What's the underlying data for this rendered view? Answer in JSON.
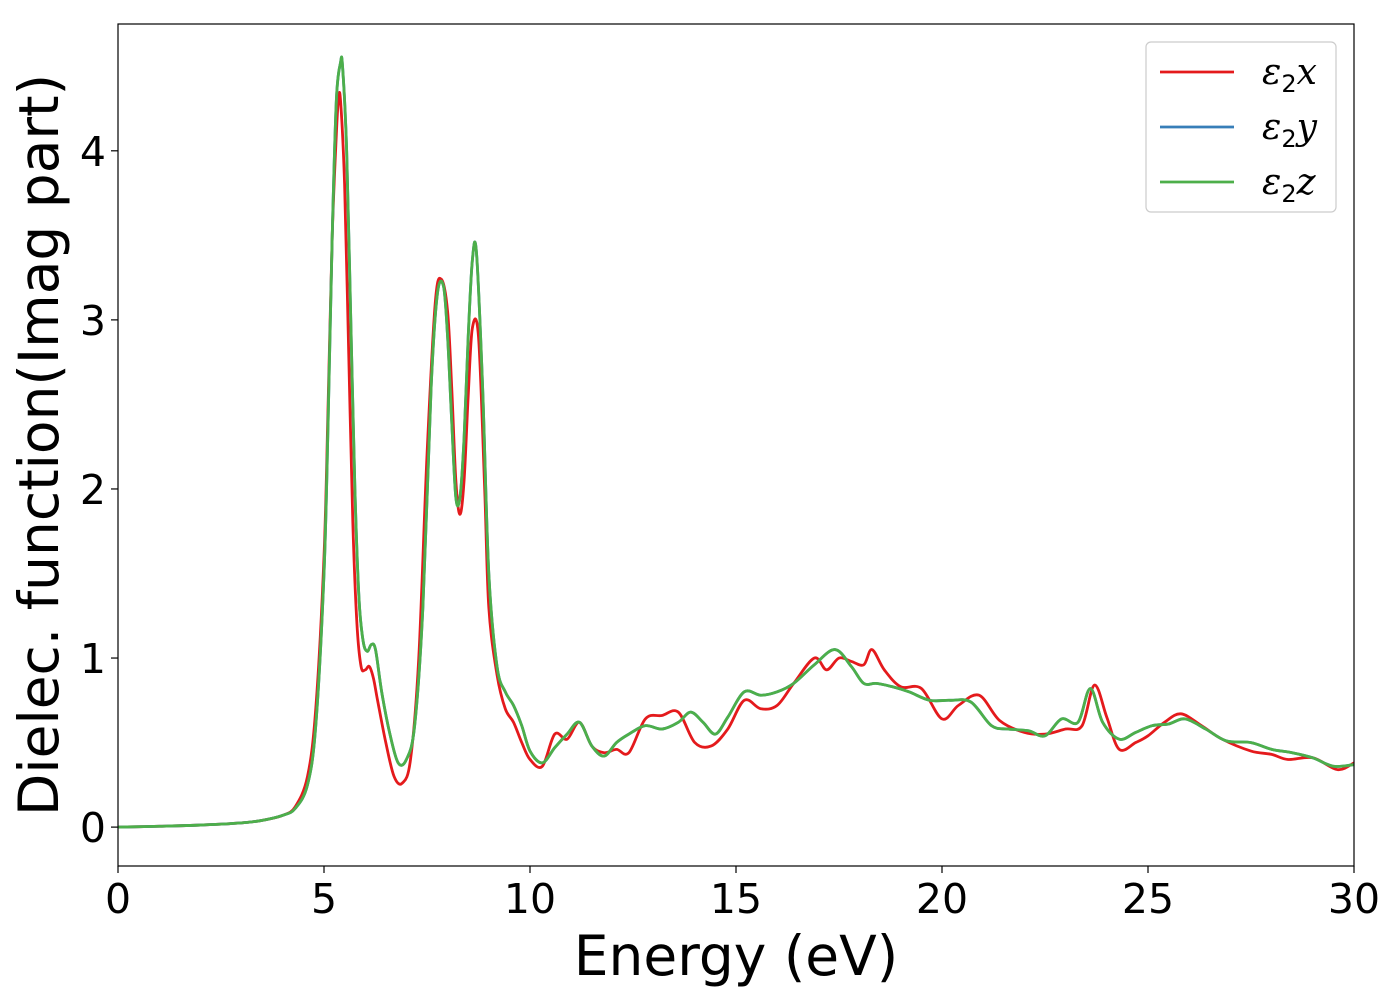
{
  "chart_data": {
    "type": "line",
    "title": "",
    "xlabel": "Energy (eV)",
    "ylabel": "Dielec. function(Imag part)",
    "xlim": [
      0,
      30
    ],
    "ylim": [
      -0.23,
      4.75
    ],
    "xticks": [
      0,
      5,
      10,
      15,
      20,
      25,
      30
    ],
    "xtick_labels": [
      "0",
      "5",
      "10",
      "15",
      "20",
      "25",
      "30"
    ],
    "yticks": [
      0,
      1,
      2,
      3,
      4
    ],
    "ytick_labels": [
      "0",
      "1",
      "2",
      "3",
      "4"
    ],
    "grid": false,
    "legend_position": "top-right",
    "series": [
      {
        "name": "ε2x",
        "symbol": "ε",
        "subscript": "2",
        "axis": "x",
        "color": "#e41a1c",
        "x": [
          0,
          1,
          2,
          3,
          3.5,
          4,
          4.3,
          4.6,
          4.8,
          5.0,
          5.1,
          5.2,
          5.3,
          5.35,
          5.4,
          5.5,
          5.6,
          5.7,
          5.8,
          5.9,
          6.0,
          6.1,
          6.2,
          6.3,
          6.5,
          6.7,
          6.9,
          7.1,
          7.3,
          7.5,
          7.7,
          7.85,
          8.0,
          8.1,
          8.2,
          8.3,
          8.4,
          8.5,
          8.6,
          8.75,
          8.9,
          9.0,
          9.2,
          9.4,
          9.6,
          9.8,
          10.0,
          10.3,
          10.6,
          10.9,
          11.2,
          11.5,
          11.8,
          12.1,
          12.4,
          12.8,
          13.2,
          13.6,
          14.0,
          14.4,
          14.8,
          15.2,
          15.6,
          16.0,
          16.4,
          16.9,
          17.2,
          17.5,
          17.8,
          18.1,
          18.3,
          18.6,
          19.0,
          19.5,
          20.0,
          20.4,
          20.9,
          21.4,
          22.0,
          22.5,
          23.0,
          23.4,
          23.7,
          24.0,
          24.3,
          24.7,
          25.0,
          25.4,
          25.8,
          26.3,
          26.8,
          27.5,
          28.0,
          28.4,
          29.0,
          29.6,
          30.0
        ],
        "y": [
          0.0,
          0.005,
          0.012,
          0.025,
          0.04,
          0.07,
          0.12,
          0.3,
          0.7,
          1.6,
          2.5,
          3.5,
          4.1,
          4.3,
          4.3,
          3.8,
          2.8,
          1.8,
          1.2,
          0.95,
          0.93,
          0.95,
          0.88,
          0.75,
          0.5,
          0.3,
          0.26,
          0.4,
          1.0,
          2.2,
          3.1,
          3.24,
          3.05,
          2.6,
          2.05,
          1.85,
          2.05,
          2.55,
          2.95,
          2.9,
          2.0,
          1.3,
          0.9,
          0.7,
          0.62,
          0.5,
          0.4,
          0.36,
          0.55,
          0.52,
          0.62,
          0.48,
          0.44,
          0.46,
          0.44,
          0.64,
          0.66,
          0.68,
          0.5,
          0.48,
          0.58,
          0.75,
          0.7,
          0.72,
          0.85,
          1.0,
          0.93,
          1.0,
          0.98,
          0.96,
          1.05,
          0.93,
          0.83,
          0.82,
          0.64,
          0.72,
          0.78,
          0.63,
          0.56,
          0.55,
          0.58,
          0.6,
          0.84,
          0.65,
          0.46,
          0.5,
          0.54,
          0.62,
          0.67,
          0.6,
          0.52,
          0.45,
          0.43,
          0.4,
          0.41,
          0.34,
          0.38
        ]
      },
      {
        "name": "ε2y",
        "symbol": "ε",
        "subscript": "2",
        "axis": "y",
        "color": "#377eb8",
        "x": [
          0,
          1,
          2,
          3,
          3.5,
          4,
          4.3,
          4.6,
          4.8,
          5.0,
          5.1,
          5.2,
          5.3,
          5.4,
          5.45,
          5.55,
          5.65,
          5.75,
          5.85,
          5.95,
          6.05,
          6.15,
          6.25,
          6.4,
          6.6,
          6.8,
          7.0,
          7.2,
          7.4,
          7.6,
          7.75,
          7.9,
          8.0,
          8.1,
          8.2,
          8.3,
          8.4,
          8.5,
          8.6,
          8.7,
          8.85,
          9.0,
          9.2,
          9.4,
          9.6,
          9.8,
          10.0,
          10.3,
          10.6,
          10.9,
          11.2,
          11.5,
          11.8,
          12.1,
          12.4,
          12.8,
          13.2,
          13.6,
          13.9,
          14.2,
          14.5,
          14.8,
          15.2,
          15.6,
          16.0,
          16.4,
          16.9,
          17.4,
          17.8,
          18.1,
          18.4,
          18.8,
          19.2,
          19.7,
          20.2,
          20.7,
          21.2,
          21.6,
          22.1,
          22.5,
          22.9,
          23.3,
          23.6,
          23.9,
          24.3,
          24.7,
          25.1,
          25.5,
          25.9,
          26.4,
          26.9,
          27.5,
          28.0,
          28.5,
          29.0,
          29.5,
          30.0
        ],
        "y": [
          0.0,
          0.005,
          0.012,
          0.025,
          0.04,
          0.07,
          0.11,
          0.25,
          0.6,
          1.5,
          2.4,
          3.5,
          4.3,
          4.52,
          4.5,
          4.0,
          3.0,
          2.0,
          1.35,
          1.1,
          1.04,
          1.08,
          1.05,
          0.8,
          0.55,
          0.38,
          0.4,
          0.6,
          1.3,
          2.6,
          3.15,
          3.2,
          2.9,
          2.4,
          1.95,
          1.95,
          2.3,
          2.9,
          3.35,
          3.4,
          2.6,
          1.5,
          0.95,
          0.8,
          0.72,
          0.6,
          0.45,
          0.38,
          0.47,
          0.55,
          0.62,
          0.48,
          0.42,
          0.5,
          0.55,
          0.6,
          0.58,
          0.62,
          0.68,
          0.62,
          0.55,
          0.65,
          0.8,
          0.78,
          0.8,
          0.85,
          0.96,
          1.05,
          0.95,
          0.85,
          0.85,
          0.83,
          0.8,
          0.75,
          0.75,
          0.74,
          0.6,
          0.58,
          0.57,
          0.54,
          0.64,
          0.62,
          0.82,
          0.62,
          0.52,
          0.56,
          0.6,
          0.61,
          0.64,
          0.58,
          0.51,
          0.5,
          0.46,
          0.44,
          0.41,
          0.36,
          0.37
        ]
      },
      {
        "name": "ε2z",
        "symbol": "ε",
        "subscript": "2",
        "axis": "z",
        "color": "#4daf4a",
        "x": [
          0,
          1,
          2,
          3,
          3.5,
          4,
          4.3,
          4.6,
          4.8,
          5.0,
          5.1,
          5.2,
          5.3,
          5.4,
          5.45,
          5.55,
          5.65,
          5.75,
          5.85,
          5.95,
          6.05,
          6.15,
          6.25,
          6.4,
          6.6,
          6.8,
          7.0,
          7.2,
          7.4,
          7.6,
          7.75,
          7.9,
          8.0,
          8.1,
          8.2,
          8.3,
          8.4,
          8.5,
          8.6,
          8.7,
          8.85,
          9.0,
          9.2,
          9.4,
          9.6,
          9.8,
          10.0,
          10.3,
          10.6,
          10.9,
          11.2,
          11.5,
          11.8,
          12.1,
          12.4,
          12.8,
          13.2,
          13.6,
          13.9,
          14.2,
          14.5,
          14.8,
          15.2,
          15.6,
          16.0,
          16.4,
          16.9,
          17.4,
          17.8,
          18.1,
          18.4,
          18.8,
          19.2,
          19.7,
          20.2,
          20.7,
          21.2,
          21.6,
          22.1,
          22.5,
          22.9,
          23.3,
          23.6,
          23.9,
          24.3,
          24.7,
          25.1,
          25.5,
          25.9,
          26.4,
          26.9,
          27.5,
          28.0,
          28.5,
          29.0,
          29.5,
          30.0
        ],
        "y": [
          0.0,
          0.005,
          0.012,
          0.025,
          0.04,
          0.07,
          0.11,
          0.25,
          0.6,
          1.5,
          2.4,
          3.5,
          4.3,
          4.52,
          4.5,
          4.0,
          3.0,
          2.0,
          1.35,
          1.1,
          1.04,
          1.08,
          1.05,
          0.8,
          0.55,
          0.38,
          0.4,
          0.6,
          1.3,
          2.6,
          3.15,
          3.2,
          2.9,
          2.4,
          1.95,
          1.95,
          2.3,
          2.9,
          3.35,
          3.4,
          2.6,
          1.5,
          0.95,
          0.8,
          0.72,
          0.6,
          0.45,
          0.38,
          0.47,
          0.55,
          0.62,
          0.48,
          0.42,
          0.5,
          0.55,
          0.6,
          0.58,
          0.62,
          0.68,
          0.62,
          0.55,
          0.65,
          0.8,
          0.78,
          0.8,
          0.85,
          0.96,
          1.05,
          0.95,
          0.85,
          0.85,
          0.83,
          0.8,
          0.75,
          0.75,
          0.74,
          0.6,
          0.58,
          0.57,
          0.54,
          0.64,
          0.62,
          0.82,
          0.62,
          0.52,
          0.56,
          0.6,
          0.61,
          0.64,
          0.58,
          0.51,
          0.5,
          0.46,
          0.44,
          0.41,
          0.36,
          0.37
        ]
      }
    ]
  }
}
